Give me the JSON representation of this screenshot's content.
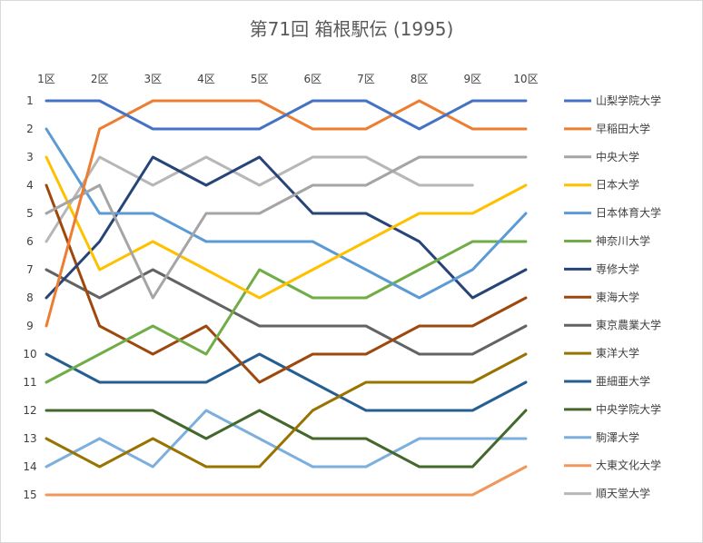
{
  "chart_data": {
    "type": "line",
    "title": "第71回 箱根駅伝 (1995)",
    "categories": [
      "1区",
      "2区",
      "3区",
      "4区",
      "5区",
      "6区",
      "7区",
      "8区",
      "9区",
      "10区"
    ],
    "yticks": [
      1,
      2,
      3,
      4,
      5,
      6,
      7,
      8,
      9,
      10,
      11,
      12,
      13,
      14,
      15
    ],
    "ylim": [
      1,
      15
    ],
    "y_reversed": true,
    "grid": false,
    "legend_position": "right",
    "series": [
      {
        "name": "山梨学院大学",
        "color": "#4472C4",
        "values": [
          1,
          1,
          2,
          2,
          2,
          1,
          1,
          2,
          1,
          1
        ]
      },
      {
        "name": "早稲田大学",
        "color": "#ED7D31",
        "values": [
          9,
          2,
          1,
          1,
          1,
          2,
          2,
          1,
          2,
          2
        ]
      },
      {
        "name": "中央大学",
        "color": "#A5A5A5",
        "values": [
          5,
          4,
          8,
          5,
          5,
          4,
          4,
          3,
          3,
          3
        ]
      },
      {
        "name": "日本大学",
        "color": "#FFC000",
        "values": [
          3,
          7,
          6,
          7,
          8,
          7,
          6,
          5,
          5,
          4
        ]
      },
      {
        "name": "日本体育大学",
        "color": "#5B9BD5",
        "values": [
          2,
          5,
          5,
          6,
          6,
          6,
          7,
          8,
          7,
          5
        ]
      },
      {
        "name": "神奈川大学",
        "color": "#70AD47",
        "values": [
          11,
          10,
          9,
          10,
          7,
          8,
          8,
          7,
          6,
          6
        ]
      },
      {
        "name": "専修大学",
        "color": "#264478",
        "values": [
          8,
          6,
          3,
          4,
          3,
          5,
          5,
          6,
          8,
          7
        ]
      },
      {
        "name": "東海大学",
        "color": "#9E480E",
        "values": [
          4,
          9,
          10,
          9,
          11,
          10,
          10,
          9,
          9,
          8
        ]
      },
      {
        "name": "東京農業大学",
        "color": "#636363",
        "values": [
          7,
          8,
          7,
          8,
          9,
          9,
          9,
          10,
          10,
          9
        ]
      },
      {
        "name": "東洋大学",
        "color": "#997300",
        "values": [
          13,
          14,
          13,
          14,
          14,
          12,
          11,
          11,
          11,
          10
        ]
      },
      {
        "name": "亜細亜大学",
        "color": "#255E91",
        "values": [
          10,
          11,
          11,
          11,
          10,
          11,
          12,
          12,
          12,
          11
        ]
      },
      {
        "name": "中央学院大学",
        "color": "#43682B",
        "values": [
          12,
          12,
          12,
          13,
          12,
          13,
          13,
          14,
          14,
          12
        ]
      },
      {
        "name": "駒澤大学",
        "color": "#7CAFDD",
        "values": [
          14,
          13,
          14,
          12,
          13,
          14,
          14,
          13,
          13,
          13
        ]
      },
      {
        "name": "大東文化大学",
        "color": "#F1975A",
        "values": [
          15,
          15,
          15,
          15,
          15,
          15,
          15,
          15,
          15,
          14
        ]
      },
      {
        "name": "順天堂大学",
        "color": "#B7B7B7",
        "values": [
          6,
          3,
          4,
          3,
          4,
          3,
          3,
          4,
          4,
          null
        ]
      }
    ]
  }
}
